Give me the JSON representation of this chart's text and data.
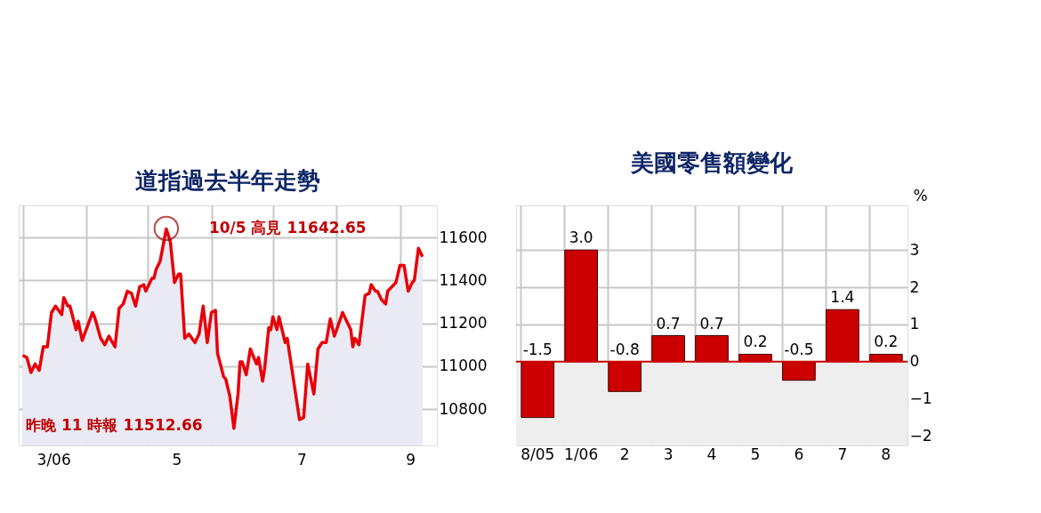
{
  "chart_data": [
    {
      "type": "area",
      "title": "道指過去半年走勢",
      "x": [
        "2006-03-01",
        "2006-03-03",
        "2006-03-05",
        "2006-03-07",
        "2006-03-09",
        "2006-03-11",
        "2006-03-13",
        "2006-03-15",
        "2006-03-17",
        "2006-03-20",
        "2006-03-21",
        "2006-03-23",
        "2006-03-24",
        "2006-03-27",
        "2006-03-28",
        "2006-03-30",
        "2006-04-04",
        "2006-04-05",
        "2006-04-08",
        "2006-04-10",
        "2006-04-12",
        "2006-04-15",
        "2006-04-17",
        "2006-04-19",
        "2006-04-21",
        "2006-04-23",
        "2006-04-25",
        "2006-04-27",
        "2006-04-29",
        "2006-04-30",
        "2006-05-03",
        "2006-05-04",
        "2006-05-05",
        "2006-05-07",
        "2006-05-09",
        "2006-05-10",
        "2006-05-12",
        "2006-05-14",
        "2006-05-16",
        "2006-05-17",
        "2006-05-19",
        "2006-05-21",
        "2006-05-24",
        "2006-05-26",
        "2006-05-28",
        "2006-05-30",
        "2006-06-01",
        "2006-06-03",
        "2006-06-04",
        "2006-06-07",
        "2006-06-08",
        "2006-06-10",
        "2006-06-12",
        "2006-06-14",
        "2006-06-15",
        "2006-06-16",
        "2006-06-18",
        "2006-06-20",
        "2006-06-23",
        "2006-06-24",
        "2006-06-26",
        "2006-06-27",
        "2006-06-29",
        "2006-06-30",
        "2006-07-01",
        "2006-07-03",
        "2006-07-04",
        "2006-07-07",
        "2006-07-08",
        "2006-07-14",
        "2006-07-16",
        "2006-07-18",
        "2006-07-21",
        "2006-07-23",
        "2006-07-25",
        "2006-07-27",
        "2006-07-29",
        "2006-07-31",
        "2006-08-04",
        "2006-08-06",
        "2006-08-08",
        "2006-08-09",
        "2006-08-10",
        "2006-08-12",
        "2006-08-15",
        "2006-08-17",
        "2006-08-18",
        "2006-08-20",
        "2006-08-21",
        "2006-08-23",
        "2006-08-25",
        "2006-08-26",
        "2006-08-28",
        "2006-08-30",
        "2006-09-01",
        "2006-09-03",
        "2006-09-05",
        "2006-09-07",
        "2006-09-08",
        "2006-09-10",
        "2006-09-12"
      ],
      "series": [
        {
          "color": "#e8000a",
          "values": [
            11050,
            11040,
            10970,
            11010,
            10980,
            11090,
            11090,
            11250,
            11280,
            11240,
            11320,
            11280,
            11280,
            11170,
            11210,
            11120,
            11250,
            11230,
            11130,
            11100,
            11140,
            11090,
            11270,
            11290,
            11350,
            11340,
            11280,
            11370,
            11380,
            11350,
            11410,
            11410,
            11450,
            11490,
            11590,
            11640,
            11580,
            11390,
            11430,
            11430,
            11130,
            11150,
            11110,
            11150,
            11280,
            11110,
            11250,
            11260,
            11060,
            10950,
            10940,
            10860,
            10710,
            10870,
            11020,
            11020,
            10960,
            11080,
            11010,
            11040,
            10930,
            10990,
            11180,
            11170,
            11230,
            11170,
            11230,
            11110,
            11130,
            10750,
            10760,
            11010,
            10870,
            11080,
            11110,
            11110,
            11220,
            11140,
            11250,
            11210,
            11170,
            11090,
            11130,
            11100,
            11330,
            11340,
            11380,
            11350,
            11350,
            11310,
            11290,
            11350,
            11370,
            11390,
            11470,
            11470,
            11350,
            11390,
            11400,
            11550,
            11510
          ]
        }
      ],
      "xlim": [
        "2006-02-27",
        "2006-09-19"
      ],
      "xticks": [
        {
          "value": "2006-03-01",
          "label": null
        },
        {
          "value": "2006-03-16",
          "label": "3/06"
        },
        {
          "value": "2006-04-01",
          "label": null
        },
        {
          "value": "2006-05-01",
          "label": null
        },
        {
          "value": "2006-05-15",
          "label": "5"
        },
        {
          "value": "2006-06-01",
          "label": null
        },
        {
          "value": "2006-07-01",
          "label": null
        },
        {
          "value": "2006-07-15",
          "label": "7"
        },
        {
          "value": "2006-08-01",
          "label": null
        },
        {
          "value": "2006-09-01",
          "label": null
        },
        {
          "value": "2006-09-06",
          "label": "9"
        }
      ],
      "ylim": [
        10630,
        11750
      ],
      "yticks": [
        10800,
        11000,
        11200,
        11400,
        11600
      ],
      "grid": true,
      "annotations": [
        {
          "text": "10/5 高見 11642.65",
          "x": "2006-05-10",
          "y": 11642.65
        },
        "昨晚 11 時報 11512.66"
      ]
    },
    {
      "type": "bar",
      "title": "美國零售額變化",
      "ylabel": "%",
      "categories": [
        "8/05",
        "1/06",
        "2",
        "3",
        "4",
        "5",
        "6",
        "7",
        "8"
      ],
      "series": [
        {
          "color": "#cc0000",
          "values": [
            -1.5,
            3.0,
            -0.8,
            0.7,
            0.7,
            0.2,
            -0.5,
            1.4,
            0.2
          ]
        }
      ],
      "value_labels": [
        "-1.5",
        "3.0",
        "-0.8",
        "0.7",
        "0.7",
        "0.2",
        "-0.5",
        "1.4",
        "0.2"
      ],
      "ylim": [
        -2.25,
        4.2
      ],
      "yticks": [
        -2,
        -1,
        0,
        1,
        2,
        3
      ],
      "grid": true,
      "bands": [
        {
          "axis": "y",
          "from": -2.25,
          "to": 0,
          "color": "#eeeeee"
        }
      ],
      "ref_lines": [
        {
          "axis": "y",
          "value": 0,
          "color": "#cc0000"
        }
      ]
    }
  ]
}
